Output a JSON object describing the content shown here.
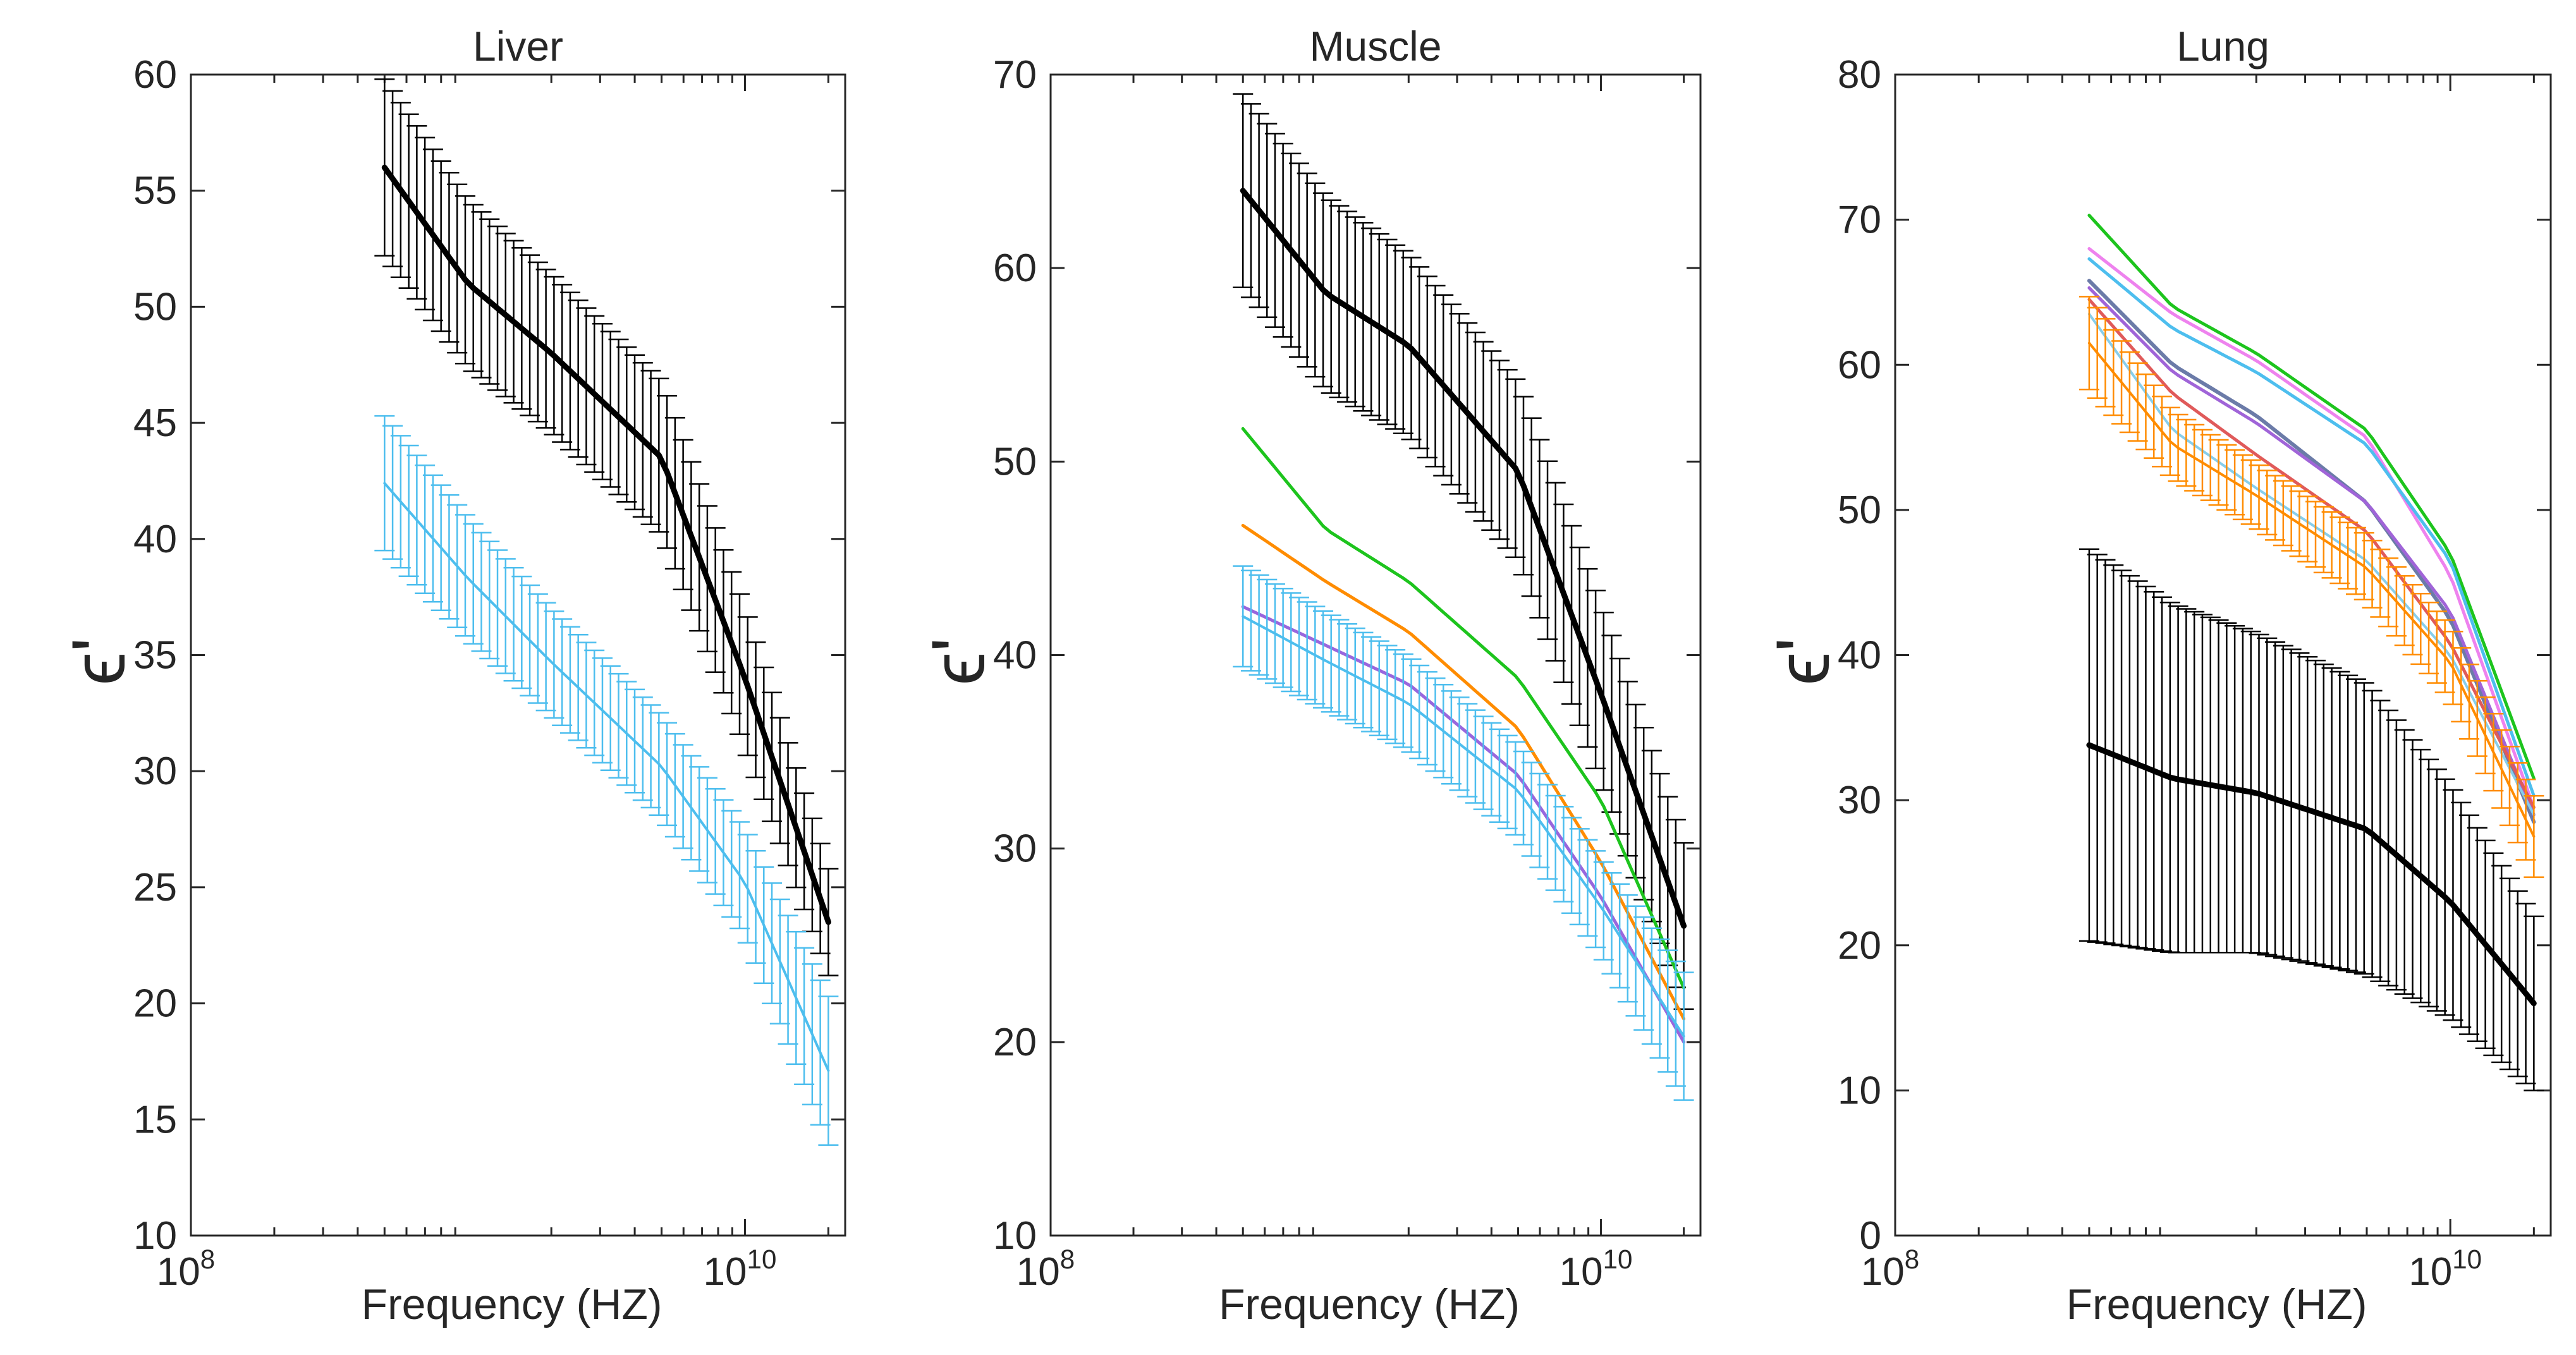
{
  "chart_data": [
    {
      "type": "line",
      "title": "Liver",
      "xlabel": "Frequency (HZ)",
      "ylabel": "ϵ'",
      "xscale": "log",
      "xlim": [
        100000000.0,
        23000000000.0
      ],
      "ylim": [
        10,
        60
      ],
      "yticks": [
        "10",
        "15",
        "20",
        "25",
        "30",
        "35",
        "40",
        "45",
        "50",
        "55",
        "60"
      ],
      "xticks": [
        {
          "base": "10",
          "exp": "8"
        },
        {
          "base": "10",
          "exp": "10"
        }
      ],
      "grid": false,
      "series": [
        {
          "color": "#000000",
          "width": 9,
          "errorbars": true,
          "x": [
            500000000.0,
            1000000000.0,
            2000000000.0,
            5000000000.0,
            10000000000.0,
            20000000000.0
          ],
          "y": [
            56,
            51,
            48,
            43.5,
            34,
            23.5
          ],
          "err": [
            3.8,
            3.6,
            3.4,
            3.3,
            3.0,
            2.3
          ]
        },
        {
          "color": "#4DBEEE",
          "width": 4,
          "errorbars": true,
          "x": [
            500000000.0,
            1000000000.0,
            2000000000.0,
            5000000000.0,
            10000000000.0,
            20000000000.0
          ],
          "y": [
            42.4,
            38.3,
            34.7,
            30.2,
            25.2,
            17.1
          ],
          "err": [
            2.9,
            2.6,
            2.3,
            2.2,
            2.3,
            3.2
          ]
        }
      ]
    },
    {
      "type": "line",
      "title": "Muscle",
      "xlabel": "Frequency (HZ)",
      "ylabel": "ϵ'",
      "xscale": "log",
      "xlim": [
        100000000.0,
        23000000000.0
      ],
      "ylim": [
        10,
        70
      ],
      "yticks": [
        "10",
        "20",
        "30",
        "40",
        "50",
        "60",
        "70"
      ],
      "xticks": [
        {
          "base": "10",
          "exp": "8"
        },
        {
          "base": "10",
          "exp": "10"
        }
      ],
      "grid": false,
      "series": [
        {
          "color": "#000000",
          "width": 9,
          "errorbars": true,
          "x": [
            500000000.0,
            1000000000.0,
            2000000000.0,
            5000000000.0,
            10000000000.0,
            20000000000.0
          ],
          "y": [
            64,
            58.7,
            56,
            49.5,
            38,
            26
          ],
          "err": [
            5.0,
            5.0,
            4.7,
            4.6,
            4.6,
            4.3
          ]
        },
        {
          "color": "#1DC41D",
          "width": 5,
          "errorbars": false,
          "x": [
            500000000.0,
            1000000000.0,
            2000000000.0,
            5000000000.0,
            10000000000.0,
            20000000000.0
          ],
          "y": [
            51.7,
            46.5,
            43.8,
            38.8,
            32.5,
            22.8
          ],
          "err": []
        },
        {
          "color": "#FF8C00",
          "width": 5,
          "errorbars": false,
          "x": [
            500000000.0,
            1000000000.0,
            2000000000.0,
            5000000000.0,
            10000000000.0,
            20000000000.0
          ],
          "y": [
            46.7,
            43.8,
            41.2,
            36.2,
            29.3,
            21.2
          ],
          "err": []
        },
        {
          "color": "#9966DD",
          "width": 5,
          "errorbars": false,
          "x": [
            500000000.0,
            1000000000.0,
            2000000000.0,
            5000000000.0,
            10000000000.0,
            20000000000.0
          ],
          "y": [
            42.5,
            40.5,
            38.5,
            33.8,
            27.5,
            20
          ],
          "err": []
        },
        {
          "color": "#4DBEEE",
          "width": 4,
          "errorbars": true,
          "x": [
            500000000.0,
            1000000000.0,
            2000000000.0,
            5000000000.0,
            10000000000.0,
            20000000000.0
          ],
          "y": [
            42,
            39.7,
            37.5,
            33,
            27,
            20.3
          ],
          "err": [
            2.6,
            2.5,
            2.4,
            2.4,
            2.5,
            3.3
          ]
        }
      ]
    },
    {
      "type": "line",
      "title": "Lung",
      "xlabel": "Frequency (HZ)",
      "ylabel": "ϵ'",
      "xscale": "log",
      "xlim": [
        100000000.0,
        23000000000.0
      ],
      "ylim": [
        0,
        80
      ],
      "yticks": [
        "0",
        "10",
        "20",
        "30",
        "40",
        "50",
        "60",
        "70",
        "80"
      ],
      "xticks": [
        {
          "base": "10",
          "exp": "8"
        },
        {
          "base": "10",
          "exp": "10"
        }
      ],
      "grid": false,
      "series": [
        {
          "color": "#000000",
          "width": 9,
          "errorbars": true,
          "x": [
            500000000.0,
            1000000000.0,
            2000000000.0,
            5000000000.0,
            10000000000.0,
            20000000000.0
          ],
          "y": [
            33.8,
            31.5,
            30.5,
            28,
            23,
            16
          ],
          "err": [
            13.5,
            12,
            11,
            10,
            8,
            6
          ]
        },
        {
          "color": "#1DC41D",
          "width": 5,
          "errorbars": false,
          "x": [
            500000000.0,
            1000000000.0,
            2000000000.0,
            5000000000.0,
            10000000000.0,
            20000000000.0
          ],
          "y": [
            70.3,
            64,
            60.8,
            55.5,
            47,
            31.5
          ],
          "err": []
        },
        {
          "color": "#EE82EE",
          "width": 5,
          "errorbars": false,
          "x": [
            500000000.0,
            1000000000.0,
            2000000000.0,
            5000000000.0,
            10000000000.0,
            20000000000.0
          ],
          "y": [
            68,
            63.5,
            60.3,
            55,
            45.5,
            29.5
          ],
          "err": []
        },
        {
          "color": "#4DBEEE",
          "width": 5,
          "errorbars": false,
          "x": [
            500000000.0,
            1000000000.0,
            2000000000.0,
            5000000000.0,
            10000000000.0,
            20000000000.0
          ],
          "y": [
            67.3,
            62.5,
            59.5,
            54.5,
            46.5,
            30.3
          ],
          "err": []
        },
        {
          "color": "#6B7BA8",
          "width": 6,
          "errorbars": false,
          "x": [
            500000000.0,
            1000000000.0,
            2000000000.0,
            5000000000.0,
            10000000000.0,
            20000000000.0
          ],
          "y": [
            65.8,
            60,
            56.5,
            50.5,
            42.5,
            28.5
          ],
          "err": []
        },
        {
          "color": "#A064D8",
          "width": 5,
          "errorbars": false,
          "x": [
            500000000.0,
            1000000000.0,
            2000000000.0,
            5000000000.0,
            10000000000.0,
            20000000000.0
          ],
          "y": [
            65.3,
            59.5,
            56,
            50.5,
            43,
            29
          ],
          "err": []
        },
        {
          "color": "#E05A5A",
          "width": 5,
          "errorbars": false,
          "x": [
            500000000.0,
            1000000000.0,
            2000000000.0,
            5000000000.0,
            10000000000.0,
            20000000000.0
          ],
          "y": [
            64.5,
            58,
            53.8,
            48.5,
            40.8,
            29.5
          ],
          "err": []
        },
        {
          "color": "#87CEEB",
          "width": 4,
          "errorbars": false,
          "x": [
            500000000.0,
            1000000000.0,
            2000000000.0,
            5000000000.0,
            10000000000.0,
            20000000000.0
          ],
          "y": [
            63.5,
            55.5,
            51.5,
            46.5,
            40,
            29
          ],
          "err": []
        },
        {
          "color": "#FF8C00",
          "width": 4,
          "errorbars": true,
          "x": [
            500000000.0,
            1000000000.0,
            2000000000.0,
            5000000000.0,
            10000000000.0,
            20000000000.0
          ],
          "y": [
            61.5,
            54.5,
            51,
            46,
            39.5,
            27.5
          ],
          "err": [
            3.2,
            2.3,
            2.2,
            2.3,
            2.5,
            2.8
          ]
        }
      ]
    }
  ]
}
